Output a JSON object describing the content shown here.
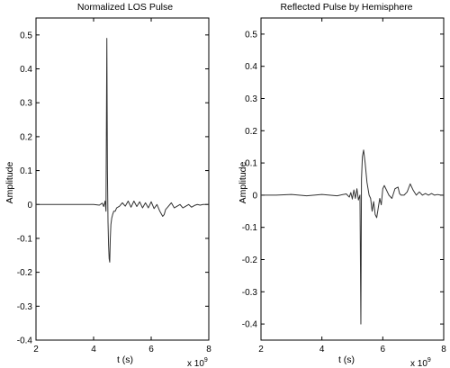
{
  "chart_data": [
    {
      "type": "line",
      "title": "Normalized LOS Pulse",
      "xlabel": "t (s)",
      "ylabel": "Amplitude",
      "x_multiplier_base": "x 10",
      "x_multiplier_exp": "9",
      "xlim": [
        2,
        8
      ],
      "ylim": [
        -0.4,
        0.55
      ],
      "xticks": [
        "2",
        "4",
        "6",
        "8"
      ],
      "yticks": [
        "-0.4",
        "-0.3",
        "-0.2",
        "-0.1",
        "0",
        "0.1",
        "0.2",
        "0.3",
        "0.4",
        "0.5"
      ],
      "grid": false,
      "series": [
        {
          "color": "#333333",
          "x": [
            2.0,
            2.5,
            3.0,
            3.5,
            4.0,
            4.2,
            4.3,
            4.35,
            4.4,
            4.43,
            4.46,
            4.48,
            4.5,
            4.52,
            4.54,
            4.56,
            4.58,
            4.6,
            4.63,
            4.66,
            4.7,
            4.75,
            4.8,
            4.9,
            5.0,
            5.1,
            5.2,
            5.3,
            5.4,
            5.5,
            5.6,
            5.7,
            5.8,
            5.9,
            6.0,
            6.1,
            6.2,
            6.3,
            6.4,
            6.45,
            6.5,
            6.6,
            6.7,
            6.8,
            6.9,
            7.0,
            7.1,
            7.2,
            7.3,
            7.4,
            7.5,
            7.6,
            7.7,
            7.8,
            7.9,
            8.0
          ],
          "y": [
            0.0,
            0.0,
            0.0,
            0.0,
            0.0,
            -0.002,
            0.004,
            -0.006,
            0.01,
            -0.02,
            0.49,
            0.1,
            -0.05,
            -0.12,
            -0.16,
            -0.17,
            -0.1,
            -0.06,
            -0.04,
            -0.03,
            -0.02,
            -0.02,
            -0.01,
            -0.005,
            0.005,
            -0.005,
            0.01,
            -0.008,
            0.01,
            -0.006,
            0.008,
            -0.01,
            0.005,
            -0.01,
            0.008,
            -0.012,
            0.0,
            -0.02,
            -0.035,
            -0.03,
            -0.015,
            -0.005,
            0.005,
            -0.01,
            -0.005,
            0.0,
            -0.01,
            -0.005,
            0.0,
            -0.008,
            -0.003,
            0.0,
            -0.002,
            0.0,
            0.0,
            0.0
          ]
        }
      ]
    },
    {
      "type": "line",
      "title": "Reflected Pulse by Hemisphere",
      "xlabel": "t (s)",
      "ylabel": "Amplitude",
      "x_multiplier_base": "x 10",
      "x_multiplier_exp": "9",
      "xlim": [
        2,
        8
      ],
      "ylim": [
        -0.45,
        0.55
      ],
      "xticks": [
        "2",
        "4",
        "6",
        "8"
      ],
      "yticks": [
        "-0.4",
        "-0.3",
        "-0.2",
        "-0.1",
        "0",
        "0.1",
        "0.2",
        "0.3",
        "0.4",
        "0.5"
      ],
      "grid": false,
      "series": [
        {
          "color": "#333333",
          "x": [
            2.0,
            2.5,
            3.0,
            3.5,
            4.0,
            4.5,
            4.8,
            4.9,
            4.95,
            5.0,
            5.05,
            5.1,
            5.15,
            5.2,
            5.25,
            5.28,
            5.3,
            5.33,
            5.37,
            5.42,
            5.48,
            5.55,
            5.6,
            5.65,
            5.7,
            5.75,
            5.8,
            5.85,
            5.9,
            5.95,
            6.0,
            6.05,
            6.1,
            6.15,
            6.2,
            6.3,
            6.4,
            6.5,
            6.55,
            6.6,
            6.7,
            6.8,
            6.9,
            7.0,
            7.1,
            7.2,
            7.3,
            7.4,
            7.5,
            7.6,
            7.7,
            7.8,
            7.9,
            8.0
          ],
          "y": [
            0.0,
            0.0,
            0.002,
            -0.002,
            0.002,
            -0.002,
            0.004,
            -0.006,
            0.008,
            -0.012,
            0.016,
            -0.01,
            0.02,
            -0.015,
            0.0,
            -0.4,
            0.05,
            0.12,
            0.14,
            0.1,
            0.04,
            0.0,
            -0.01,
            -0.05,
            -0.02,
            -0.06,
            -0.07,
            -0.04,
            -0.01,
            -0.03,
            0.02,
            0.03,
            0.02,
            0.01,
            0.0,
            -0.01,
            0.02,
            0.025,
            0.005,
            0.0,
            0.0,
            0.01,
            0.035,
            0.015,
            0.0,
            0.01,
            0.0,
            0.005,
            0.0,
            0.005,
            0.0,
            0.002,
            0.0,
            0.0
          ]
        }
      ]
    }
  ]
}
